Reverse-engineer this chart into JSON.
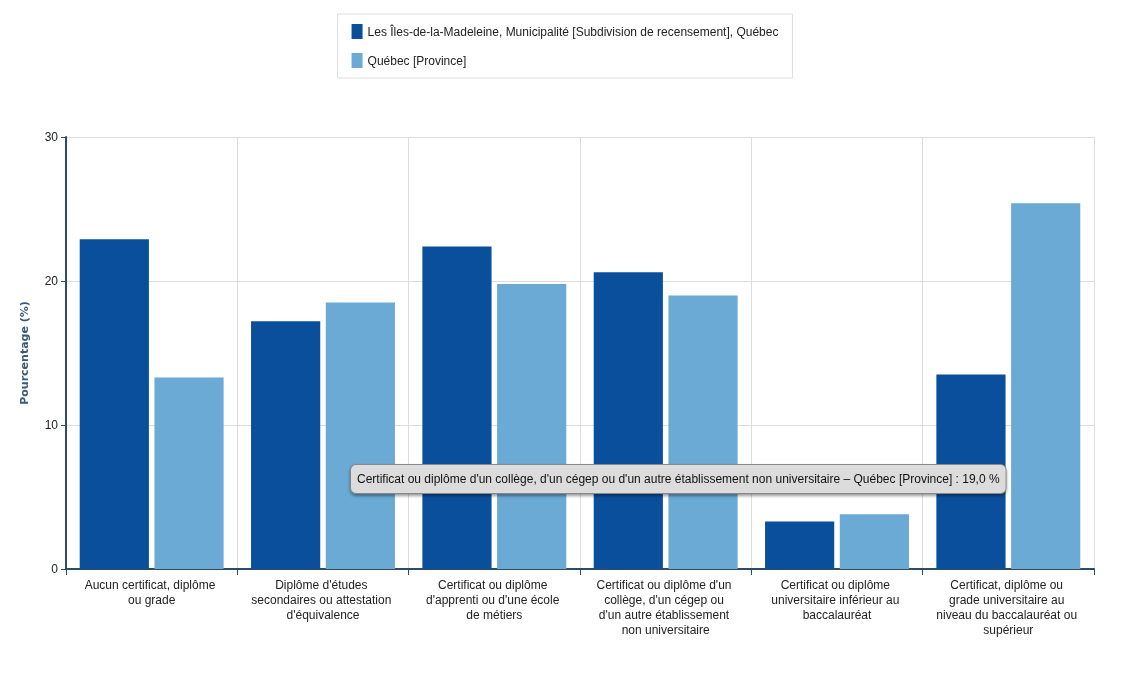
{
  "chart_data": {
    "type": "bar",
    "ylabel": "Pourcentage (%)",
    "categories": [
      "Aucun certificat, diplôme ou grade",
      "Diplôme d'études secondaires ou attestation d'équivalence",
      "Certificat ou diplôme d'apprenti ou d'une école de métiers",
      "Certificat ou diplôme d'un collège, d'un cégep ou d'un autre établissement non universitaire",
      "Certificat ou diplôme universitaire inférieur au baccalauréat",
      "Certificat, diplôme ou grade universitaire au niveau du baccalauréat ou supérieur"
    ],
    "series": [
      {
        "name": "Les Îles-de-la-Madeleine, Municipalité [Subdivision de recensement], Québec",
        "color": "#0a4f9c",
        "values": [
          22.9,
          17.2,
          22.4,
          20.6,
          3.3,
          13.5
        ]
      },
      {
        "name": "Québec [Province]",
        "color": "#6aaad4",
        "values": [
          13.3,
          18.5,
          19.8,
          19.0,
          3.8,
          25.4
        ]
      }
    ],
    "ylim": [
      0,
      30
    ],
    "yticks": [
      0,
      10,
      20,
      30
    ],
    "grid": true,
    "legend": "top",
    "annotations": [
      "Certificat ou diplôme d'un collège, d'un cégep ou d'un autre établissement non universitaire – Québec [Province] : 19,0 %"
    ]
  }
}
